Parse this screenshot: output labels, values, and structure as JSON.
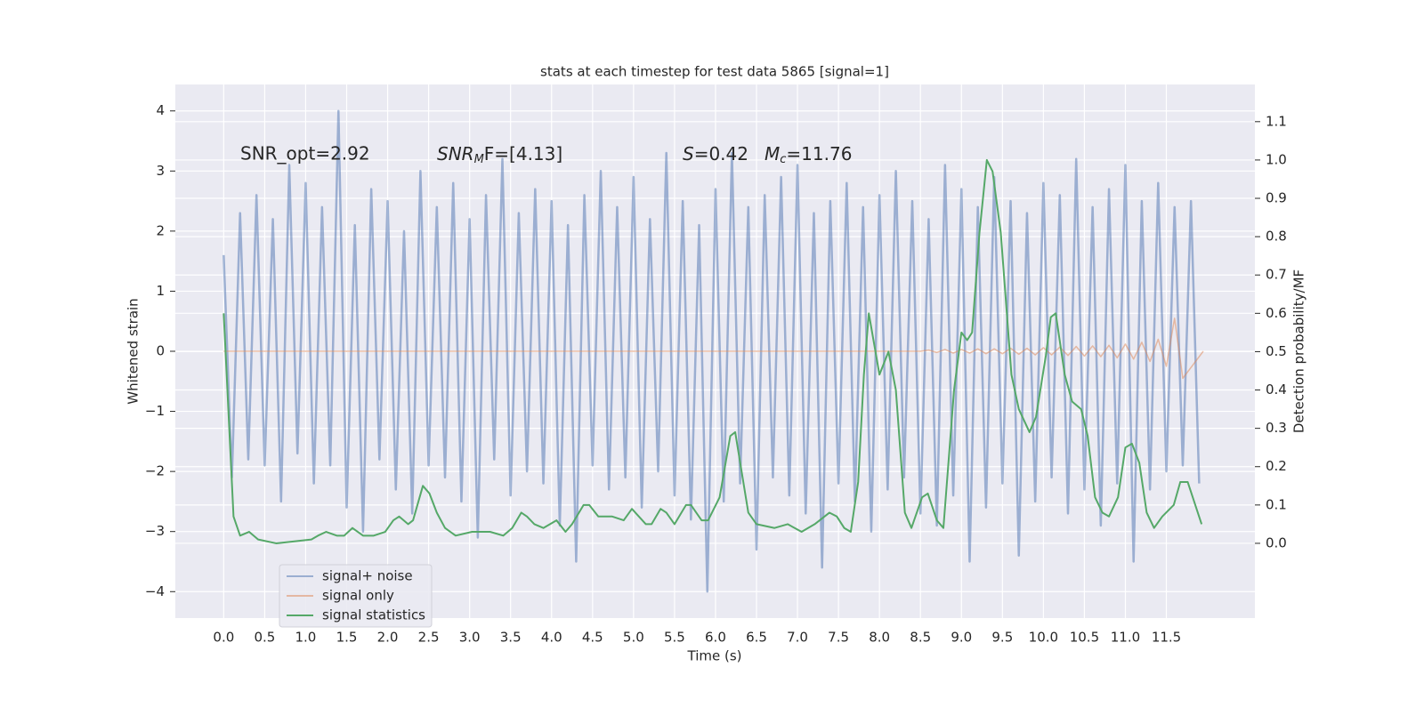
{
  "chart_data": {
    "type": "line",
    "title": "stats at each timestep for test data 5865 [signal=1]",
    "xlabel": "Time (s)",
    "ylabel": "Whitened strain",
    "y2label": "Detection probability/MF",
    "annotations": {
      "snr_opt": "SNR_opt=2.92",
      "snr_mf": [
        "SNR",
        "M",
        "F=[4.13]"
      ],
      "s": [
        "S",
        "=0.42"
      ],
      "mc": [
        "M",
        "c",
        "=11.76"
      ]
    },
    "xlim": [
      -0.59,
      12.58
    ],
    "ylim": [
      -4.44,
      4.44
    ],
    "y2lim": [
      -0.195,
      1.197
    ],
    "xticks": [
      {
        "value": 0,
        "label": "0.0"
      },
      0.5,
      {
        "value": 1,
        "label": "1.0"
      },
      1.5,
      {
        "value": 2,
        "label": "2.0"
      },
      2.5,
      {
        "value": 3,
        "label": "3.0"
      },
      3.5,
      {
        "value": 4,
        "label": "4.0"
      },
      4.5,
      {
        "value": 5,
        "label": "5.0"
      },
      5.5,
      {
        "value": 6,
        "label": "6.0"
      },
      6.5,
      {
        "value": 7,
        "label": "7.0"
      },
      7.5,
      {
        "value": 8,
        "label": "8.0"
      },
      8.5,
      {
        "value": 9,
        "label": "9.0"
      },
      9.5,
      {
        "value": 10,
        "label": "10.0"
      },
      10.5,
      {
        "value": 11,
        "label": "11.0"
      },
      11.5
    ],
    "yticks": [
      {
        "value": -4,
        "label": "−4"
      },
      {
        "value": -3,
        "label": "−3"
      },
      {
        "value": -2,
        "label": "−2"
      },
      {
        "value": -1,
        "label": "−1"
      },
      0,
      1,
      2,
      3,
      4
    ],
    "y2ticks": [
      {
        "value": 0,
        "label": "0.0"
      },
      0.1,
      0.2,
      0.3,
      0.4,
      0.5,
      0.6,
      0.7,
      0.8,
      0.9,
      {
        "value": 1,
        "label": "1.0"
      },
      1.1
    ],
    "grid": true,
    "legend": "lower left",
    "series": [
      {
        "name": "signal+ noise",
        "color": "#4c72b0",
        "x": [
          0.0,
          0.1,
          0.2,
          0.3,
          0.4,
          0.5,
          0.6,
          0.7,
          0.8,
          0.9,
          1.0,
          1.1,
          1.2,
          1.3,
          1.4,
          1.5,
          1.6,
          1.7,
          1.8,
          1.9,
          2.0,
          2.1,
          2.2,
          2.3,
          2.4,
          2.5,
          2.6,
          2.7,
          2.8,
          2.9,
          3.0,
          3.1,
          3.2,
          3.3,
          3.4,
          3.5,
          3.6,
          3.7,
          3.8,
          3.9,
          4.0,
          4.1,
          4.2,
          4.3,
          4.4,
          4.5,
          4.6,
          4.7,
          4.8,
          4.9,
          5.0,
          5.1,
          5.2,
          5.3,
          5.4,
          5.5,
          5.6,
          5.7,
          5.8,
          5.9,
          6.0,
          6.1,
          6.2,
          6.3,
          6.4,
          6.5,
          6.6,
          6.7,
          6.8,
          6.9,
          7.0,
          7.1,
          7.2,
          7.3,
          7.4,
          7.5,
          7.6,
          7.7,
          7.8,
          7.9,
          8.0,
          8.1,
          8.2,
          8.3,
          8.4,
          8.5,
          8.6,
          8.7,
          8.8,
          8.9,
          9.0,
          9.1,
          9.2,
          9.3,
          9.4,
          9.5,
          9.6,
          9.7,
          9.8,
          9.9,
          10.0,
          10.1,
          10.2,
          10.3,
          10.4,
          10.5,
          10.6,
          10.7,
          10.8,
          10.9,
          11.0,
          11.1,
          11.2,
          11.3,
          11.4,
          11.5,
          11.6,
          11.7,
          11.8,
          11.9
        ],
        "values": [
          1.6,
          -2.1,
          2.3,
          -1.8,
          2.6,
          -1.9,
          2.2,
          -2.5,
          3.1,
          -1.7,
          2.8,
          -2.2,
          2.4,
          -1.9,
          4.0,
          -2.6,
          2.1,
          -3.0,
          2.7,
          -1.8,
          2.5,
          -2.3,
          2.0,
          -2.7,
          3.0,
          -1.9,
          2.4,
          -2.1,
          2.8,
          -2.5,
          2.2,
          -3.1,
          2.6,
          -1.8,
          3.2,
          -2.4,
          2.3,
          -2.0,
          2.7,
          -2.2,
          2.5,
          -2.9,
          2.1,
          -3.5,
          2.6,
          -1.9,
          3.0,
          -2.3,
          2.4,
          -2.1,
          2.9,
          -2.6,
          2.2,
          -2.0,
          3.3,
          -2.4,
          2.5,
          -2.8,
          2.1,
          -4.0,
          2.7,
          -2.5,
          3.3,
          -2.2,
          2.4,
          -3.3,
          2.6,
          -2.1,
          2.9,
          -2.4,
          3.1,
          -2.7,
          2.3,
          -3.6,
          2.5,
          -2.2,
          2.8,
          -2.5,
          2.4,
          -3.0,
          2.6,
          -2.3,
          3.0,
          -2.1,
          2.5,
          -2.7,
          2.2,
          -2.9,
          3.1,
          -2.4,
          2.7,
          -3.5,
          2.4,
          -2.6,
          2.9,
          -2.2,
          2.5,
          -3.4,
          2.3,
          -2.5,
          2.8,
          -2.1,
          2.6,
          -2.7,
          3.2,
          -2.3,
          2.4,
          -2.9,
          2.7,
          -2.2,
          3.1,
          -3.5,
          2.5,
          -2.3,
          2.8,
          -2.0,
          2.4,
          -1.9,
          2.5,
          -2.2
        ]
      },
      {
        "name": "signal only",
        "color": "#dd8452",
        "x": [
          0,
          8.5,
          8.6,
          8.7,
          8.8,
          8.9,
          9.0,
          9.1,
          9.2,
          9.3,
          9.4,
          9.5,
          9.6,
          9.7,
          9.8,
          9.9,
          10.0,
          10.1,
          10.2,
          10.3,
          10.4,
          10.5,
          10.6,
          10.7,
          10.8,
          10.9,
          11.0,
          11.1,
          11.2,
          11.3,
          11.4,
          11.5,
          11.6,
          11.7,
          11.95
        ],
        "values": [
          0,
          0,
          0.02,
          -0.02,
          0.03,
          -0.03,
          0.03,
          -0.03,
          0.04,
          -0.04,
          0.04,
          -0.04,
          0.05,
          -0.05,
          0.05,
          -0.06,
          0.06,
          -0.06,
          0.07,
          -0.07,
          0.08,
          -0.08,
          0.09,
          -0.09,
          0.1,
          -0.11,
          0.12,
          -0.13,
          0.15,
          -0.17,
          0.2,
          -0.25,
          0.55,
          -0.45,
          0
        ]
      },
      {
        "name": "signal statistics",
        "color": "#55a868",
        "axis": "y2",
        "x": [
          0,
          0.12,
          0.2,
          0.31,
          0.42,
          0.64,
          1.07,
          1.15,
          1.25,
          1.38,
          1.47,
          1.57,
          1.7,
          1.83,
          1.97,
          2.07,
          2.14,
          2.25,
          2.31,
          2.43,
          2.51,
          2.6,
          2.7,
          2.83,
          3.03,
          3.25,
          3.41,
          3.52,
          3.63,
          3.7,
          3.79,
          3.9,
          4.06,
          4.17,
          4.25,
          4.39,
          4.46,
          4.57,
          4.74,
          4.88,
          4.98,
          5.15,
          5.22,
          5.33,
          5.4,
          5.5,
          5.64,
          5.7,
          5.83,
          5.91,
          6.05,
          6.18,
          6.24,
          6.4,
          6.5,
          6.72,
          6.88,
          7.05,
          7.21,
          7.39,
          7.48,
          7.57,
          7.65,
          7.74,
          7.81,
          7.87,
          8.0,
          8.11,
          8.2,
          8.31,
          8.39,
          8.52,
          8.59,
          8.7,
          8.78,
          8.91,
          9.0,
          9.07,
          9.13,
          9.22,
          9.31,
          9.38,
          9.48,
          9.61,
          9.7,
          9.83,
          9.91,
          10.03,
          10.09,
          10.15,
          10.26,
          10.35,
          10.46,
          10.54,
          10.63,
          10.72,
          10.8,
          10.91,
          11.0,
          11.08,
          11.17,
          11.26,
          11.35,
          11.45,
          11.59,
          11.67,
          11.76,
          11.93
        ],
        "values": [
          0.6,
          0.07,
          0.02,
          0.03,
          0.01,
          0.0,
          0.01,
          0.02,
          0.03,
          0.02,
          0.02,
          0.04,
          0.02,
          0.02,
          0.03,
          0.06,
          0.07,
          0.05,
          0.06,
          0.15,
          0.13,
          0.08,
          0.04,
          0.02,
          0.03,
          0.03,
          0.02,
          0.04,
          0.08,
          0.07,
          0.05,
          0.04,
          0.06,
          0.03,
          0.05,
          0.1,
          0.1,
          0.07,
          0.07,
          0.06,
          0.09,
          0.05,
          0.05,
          0.09,
          0.08,
          0.05,
          0.1,
          0.1,
          0.06,
          0.06,
          0.12,
          0.28,
          0.29,
          0.08,
          0.05,
          0.04,
          0.05,
          0.03,
          0.05,
          0.08,
          0.07,
          0.04,
          0.03,
          0.16,
          0.44,
          0.6,
          0.44,
          0.5,
          0.4,
          0.08,
          0.04,
          0.12,
          0.13,
          0.06,
          0.04,
          0.4,
          0.55,
          0.53,
          0.55,
          0.81,
          1.0,
          0.97,
          0.81,
          0.44,
          0.35,
          0.29,
          0.33,
          0.49,
          0.59,
          0.6,
          0.44,
          0.37,
          0.35,
          0.28,
          0.12,
          0.08,
          0.07,
          0.12,
          0.25,
          0.26,
          0.21,
          0.08,
          0.04,
          0.07,
          0.1,
          0.16,
          0.16,
          0.05
        ]
      }
    ]
  }
}
